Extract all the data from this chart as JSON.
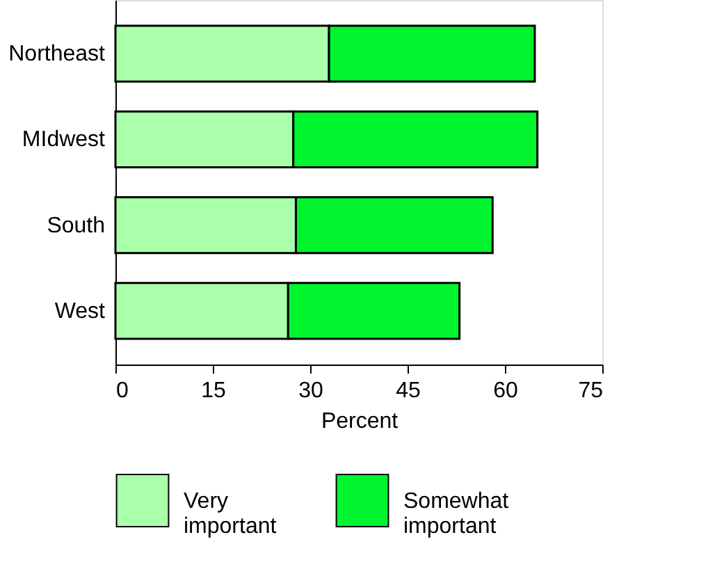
{
  "chart_data": {
    "type": "bar",
    "orientation": "horizontal",
    "stacked": true,
    "categories": [
      "Northeast",
      "MIdwest",
      "South",
      "West"
    ],
    "series": [
      {
        "name": "Very important",
        "color": "#aaffaa",
        "values": [
          32.9,
          27.4,
          27.8,
          26.6
        ]
      },
      {
        "name": "Somewhat important",
        "color": "#00f52e",
        "values": [
          31.7,
          37.6,
          30.3,
          26.4
        ]
      }
    ],
    "xlabel": "Percent",
    "xlim": [
      0,
      75
    ],
    "xticks": [
      0,
      15,
      30,
      45,
      60,
      75
    ],
    "grid": false,
    "legend": "bottom"
  }
}
